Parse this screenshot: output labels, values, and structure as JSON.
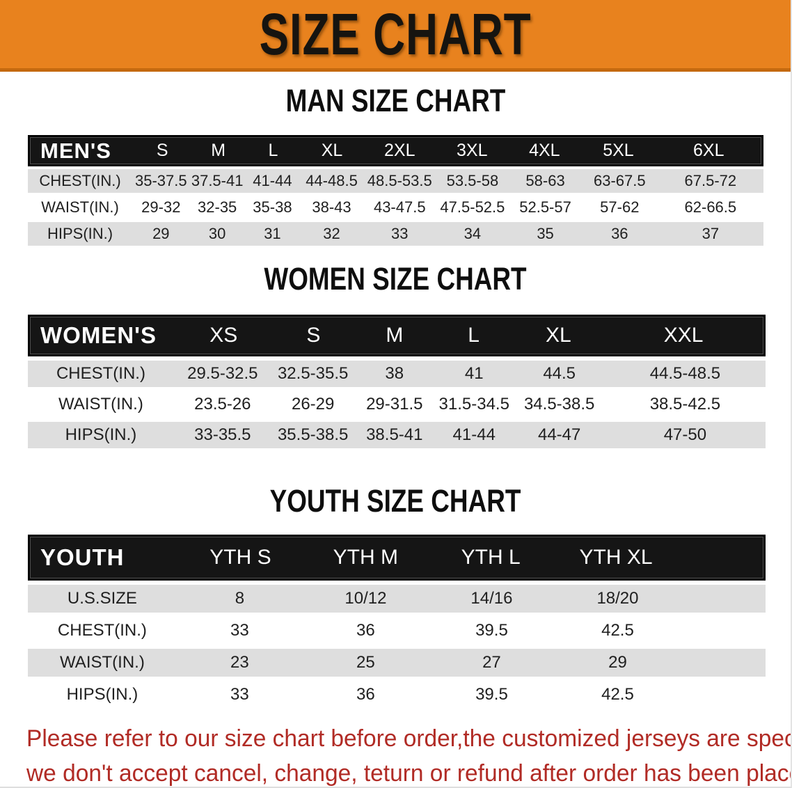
{
  "banner": {
    "title": "SIZE CHART"
  },
  "sections": {
    "men": {
      "heading": "MAN SIZE CHART",
      "label": "MEN'S",
      "columns": [
        "S",
        "M",
        "L",
        "XL",
        "2XL",
        "3XL",
        "4XL",
        "5XL",
        "6XL"
      ],
      "rows": [
        {
          "label": "CHEST(IN.)",
          "values": [
            "35-37.5",
            "37.5-41",
            "41-44",
            "44-48.5",
            "48.5-53.5",
            "53.5-58",
            "58-63",
            "63-67.5",
            "67.5-72"
          ]
        },
        {
          "label": "WAIST(IN.)",
          "values": [
            "29-32",
            "32-35",
            "35-38",
            "38-43",
            "43-47.5",
            "47.5-52.5",
            "52.5-57",
            "57-62",
            "62-66.5"
          ]
        },
        {
          "label": "HIPS(IN.)",
          "values": [
            "29",
            "30",
            "31",
            "32",
            "33",
            "34",
            "35",
            "36",
            "37"
          ]
        }
      ]
    },
    "women": {
      "heading": "WOMEN SIZE CHART",
      "label": "WOMEN'S",
      "columns": [
        "XS",
        "S",
        "M",
        "L",
        "XL",
        "XXL"
      ],
      "rows": [
        {
          "label": "CHEST(IN.)",
          "values": [
            "29.5-32.5",
            "32.5-35.5",
            "38",
            "41",
            "44.5",
            "44.5-48.5"
          ]
        },
        {
          "label": "WAIST(IN.)",
          "values": [
            "23.5-26",
            "26-29",
            "29-31.5",
            "31.5-34.5",
            "34.5-38.5",
            "38.5-42.5"
          ]
        },
        {
          "label": "HIPS(IN.)",
          "values": [
            "33-35.5",
            "35.5-38.5",
            "38.5-41",
            "41-44",
            "44-47",
            "47-50"
          ]
        }
      ]
    },
    "youth": {
      "heading": "YOUTH SIZE CHART",
      "label": "YOUTH",
      "columns": [
        "YTH S",
        "YTH M",
        "YTH L",
        "YTH XL"
      ],
      "rows": [
        {
          "label": "U.S.SIZE",
          "values": [
            "8",
            "10/12",
            "14/16",
            "18/20"
          ]
        },
        {
          "label": "CHEST(IN.)",
          "values": [
            "33",
            "36",
            "39.5",
            "42.5"
          ]
        },
        {
          "label": "WAIST(IN.)",
          "values": [
            "23",
            "25",
            "27",
            "29"
          ]
        },
        {
          "label": "HIPS(IN.)",
          "values": [
            "33",
            "36",
            "39.5",
            "42.5"
          ]
        }
      ]
    }
  },
  "disclaimer": {
    "line1": "Please refer to our size chart before order,the customized jerseys are special products,",
    "line2": "we don't accept cancel, change, teturn or refund after order has been placed!"
  },
  "colors": {
    "banner_bg": "#E8821E",
    "banner_border": "#C4690E",
    "table_header_bg": "#151515",
    "row_alt_gray": "#DEDEDE",
    "disclaimer_red": "#B12B25"
  }
}
